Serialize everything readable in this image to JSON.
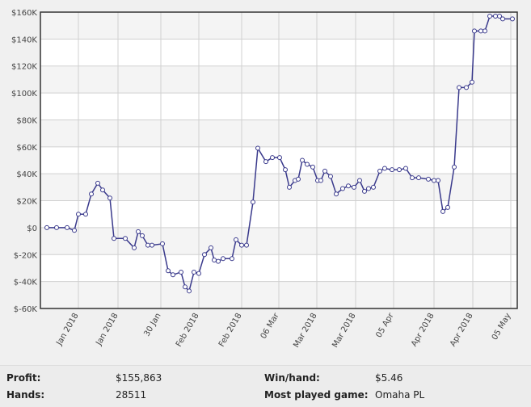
{
  "chart_data": {
    "type": "line",
    "x": [
      8,
      20,
      33,
      42,
      47,
      56,
      63,
      71,
      77,
      86,
      91,
      105,
      116,
      121,
      126,
      133,
      138,
      151,
      158,
      164,
      174,
      179,
      184,
      190,
      196,
      203,
      211,
      215,
      220,
      226,
      237,
      242,
      249,
      255,
      263,
      269,
      279,
      287,
      296,
      303,
      308,
      315,
      319,
      324,
      330,
      337,
      343,
      347,
      352,
      359,
      366,
      374,
      381,
      388,
      395,
      401,
      406,
      412,
      420,
      426,
      435,
      444,
      452,
      460,
      468,
      480,
      487,
      492,
      498,
      504,
      512,
      518,
      527,
      534,
      537,
      545,
      550,
      556,
      563,
      568,
      572,
      584
    ],
    "series": [
      {
        "name": "Profit",
        "color": "#3a3a8c",
        "values": [
          0,
          0,
          0,
          -2000,
          10000,
          10000,
          25000,
          33000,
          28000,
          22000,
          -8000,
          -8000,
          -15000,
          -3000,
          -6000,
          -13000,
          -13000,
          -12000,
          -32000,
          -35000,
          -33000,
          -44000,
          -47000,
          -33000,
          -34000,
          -20000,
          -15000,
          -24000,
          -25000,
          -23000,
          -23000,
          -9000,
          -13000,
          -13000,
          19000,
          59000,
          49000,
          52000,
          52000,
          43000,
          30000,
          35000,
          36000,
          50000,
          47000,
          45000,
          35000,
          35000,
          42000,
          38000,
          25000,
          29000,
          31000,
          30000,
          35000,
          27000,
          29000,
          30000,
          42000,
          44000,
          43000,
          43000,
          44000,
          37000,
          37000,
          36000,
          35000,
          35000,
          12000,
          15000,
          45000,
          104000,
          104000,
          108000,
          146000,
          146000,
          146000,
          157000,
          157000,
          157000,
          155000,
          155000
        ]
      }
    ],
    "xlim": [
      0,
      590
    ],
    "xticks": [
      {
        "value": 47,
        "label": "Jan 2018"
      },
      {
        "value": 96,
        "label": "Jan 2018"
      },
      {
        "value": 149,
        "label": "30 Jan"
      },
      {
        "value": 196,
        "label": "Feb 2018"
      },
      {
        "value": 249,
        "label": "Feb 2018"
      },
      {
        "value": 295,
        "label": "06 Mar"
      },
      {
        "value": 342,
        "label": "Mar 2018"
      },
      {
        "value": 390,
        "label": "Mar 2018"
      },
      {
        "value": 437,
        "label": "05 Apr"
      },
      {
        "value": 487,
        "label": "Apr 2018"
      },
      {
        "value": 535,
        "label": "Apr 2018"
      },
      {
        "value": 582,
        "label": "05 May"
      }
    ],
    "ylim": [
      -60000,
      160000
    ],
    "yticks": [
      {
        "value": -60000,
        "label": "$-60K"
      },
      {
        "value": -40000,
        "label": "$-40K"
      },
      {
        "value": -20000,
        "label": "$-20K"
      },
      {
        "value": 0,
        "label": "$0"
      },
      {
        "value": 20000,
        "label": "$20K"
      },
      {
        "value": 40000,
        "label": "$40K"
      },
      {
        "value": 60000,
        "label": "$60K"
      },
      {
        "value": 80000,
        "label": "$80K"
      },
      {
        "value": 100000,
        "label": "$100K"
      },
      {
        "value": 120000,
        "label": "$120K"
      },
      {
        "value": 140000,
        "label": "$140K"
      },
      {
        "value": 160000,
        "label": "$160K"
      }
    ],
    "grid": true
  },
  "stats": [
    {
      "label": "Profit:",
      "value": "$155,863"
    },
    {
      "label": "Hands:",
      "value": "28511"
    },
    {
      "label": "Win/hand:",
      "value": "$5.46"
    },
    {
      "label": "Most played game:",
      "value": "Omaha PL"
    }
  ]
}
